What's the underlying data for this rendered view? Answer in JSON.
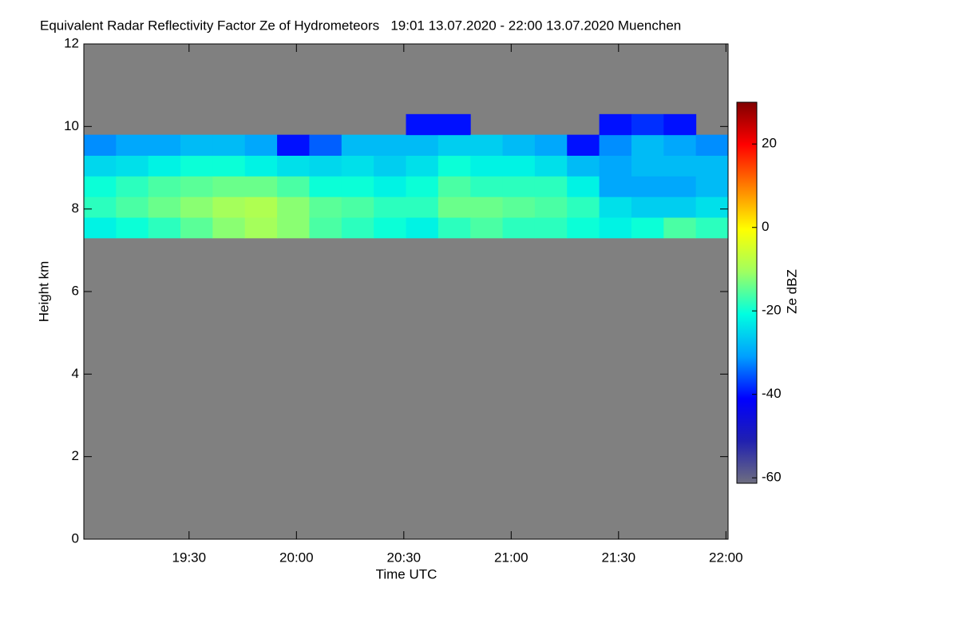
{
  "chart_data": {
    "type": "heatmap",
    "title": "Equivalent Radar Reflectivity Factor Ze of Hydrometeors   19:01 13.07.2020 - 22:00 13.07.2020 Muenchen",
    "xlabel": "Time UTC",
    "ylabel": "Height km",
    "xlim": [
      19.01,
      22.01
    ],
    "ylim": [
      0,
      12
    ],
    "xticks": [
      {
        "value": 19.5,
        "label": "19:30"
      },
      {
        "value": 20.0,
        "label": "20:00"
      },
      {
        "value": 20.5,
        "label": "20:30"
      },
      {
        "value": 21.0,
        "label": "21:00"
      },
      {
        "value": 21.5,
        "label": "21:30"
      },
      {
        "value": 22.0,
        "label": "22:00"
      }
    ],
    "yticks": [
      0,
      2,
      4,
      6,
      8,
      10,
      12
    ],
    "xbins": [
      19.01,
      19.16,
      19.31,
      19.46,
      19.61,
      19.76,
      19.91,
      20.06,
      20.21,
      20.36,
      20.51,
      20.66,
      20.81,
      20.96,
      21.11,
      21.26,
      21.41,
      21.56,
      21.71,
      21.86,
      22.01
    ],
    "ybins": [
      7.3,
      7.8,
      8.3,
      8.8,
      9.3,
      9.8,
      10.3
    ],
    "z": [
      [
        -22,
        -18,
        -20,
        -25,
        -32,
        null
      ],
      [
        -20,
        -16,
        -18,
        -24,
        -30,
        null
      ],
      [
        -18,
        -14,
        -16,
        -22,
        -30,
        null
      ],
      [
        -15,
        -12,
        -15,
        -20,
        -28,
        null
      ],
      [
        -12,
        -10,
        -14,
        -20,
        -28,
        null
      ],
      [
        -10,
        -9,
        -14,
        -22,
        -30,
        null
      ],
      [
        -12,
        -12,
        -16,
        -24,
        -40,
        null
      ],
      [
        -16,
        -15,
        -20,
        -25,
        -35,
        null
      ],
      [
        -18,
        -16,
        -20,
        -24,
        -28,
        null
      ],
      [
        -20,
        -18,
        -22,
        -26,
        -28,
        null
      ],
      [
        -22,
        -18,
        -20,
        -24,
        -28,
        -40
      ],
      [
        -18,
        -14,
        -16,
        -20,
        -26,
        -40
      ],
      [
        -16,
        -14,
        -18,
        -22,
        -26,
        null
      ],
      [
        -18,
        -15,
        -18,
        -22,
        -28,
        null
      ],
      [
        -18,
        -16,
        -18,
        -24,
        -30,
        null
      ],
      [
        -20,
        -18,
        -22,
        -28,
        -40,
        null
      ],
      [
        -22,
        -24,
        -30,
        -30,
        -32,
        -40
      ],
      [
        -20,
        -26,
        -30,
        -28,
        -28,
        -38
      ],
      [
        -16,
        -26,
        -30,
        -28,
        -30,
        -40
      ],
      [
        -18,
        -24,
        -28,
        -28,
        -32,
        null
      ]
    ],
    "background_color": "#808080",
    "colormap": [
      "#6e6e80",
      "#2020b0",
      "#0000ff",
      "#00a0ff",
      "#00ffe0",
      "#a0ff60",
      "#ffff00",
      "#ff8000",
      "#ff0000",
      "#800000"
    ],
    "colorbar_label": "Ze dBZ",
    "clim": [
      -61.3,
      30
    ],
    "cticks": [
      -60,
      -40,
      -20,
      0,
      20
    ]
  }
}
